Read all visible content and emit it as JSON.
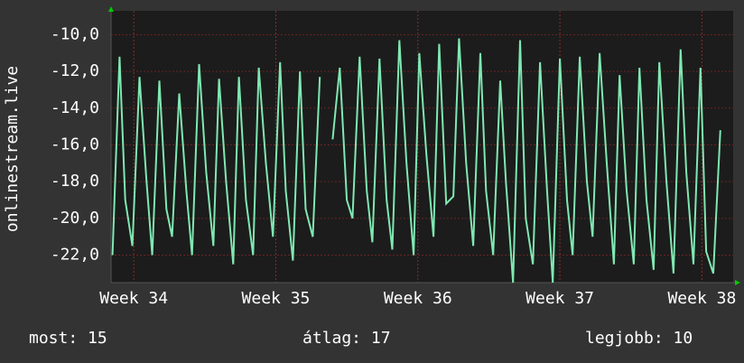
{
  "chart_data": {
    "type": "line",
    "y_label": "onlinestream.live",
    "ylim": [
      -23.5,
      -8.7
    ],
    "yticks": [
      {
        "value": -22,
        "label": "-22,0"
      },
      {
        "value": -20,
        "label": "-20,0"
      },
      {
        "value": -18,
        "label": "-18,0"
      },
      {
        "value": -16,
        "label": "-16,0"
      },
      {
        "value": -14,
        "label": "-14,0"
      },
      {
        "value": -12,
        "label": "-12,0"
      },
      {
        "value": -10,
        "label": "-10,0"
      }
    ],
    "xlim": [
      33.84,
      38.22
    ],
    "xticks": [
      {
        "value": 34,
        "label": "Week 34"
      },
      {
        "value": 35,
        "label": "Week 35"
      },
      {
        "value": 36,
        "label": "Week 36"
      },
      {
        "value": 37,
        "label": "Week 37"
      },
      {
        "value": 38,
        "label": "Week 38"
      }
    ],
    "grid": true,
    "series": [
      {
        "color": "#7fe8b2",
        "x": [
          33.85,
          33.9,
          33.94,
          33.99,
          34.04,
          34.09,
          34.13,
          34.18,
          34.23,
          34.27,
          34.32,
          34.37,
          34.41,
          34.46,
          34.51,
          34.56,
          34.6,
          34.65,
          34.7,
          34.74,
          34.79,
          34.84,
          34.88,
          34.93,
          34.98,
          35.03,
          35.07,
          35.12,
          35.17,
          35.21,
          35.26,
          35.31,
          35.35,
          35.4,
          35.45,
          35.5,
          35.54,
          35.59,
          35.64,
          35.68,
          35.73,
          35.78,
          35.82,
          35.87,
          35.92,
          35.97,
          36.01,
          36.06,
          36.11,
          36.15,
          36.2,
          36.25,
          36.29,
          36.34,
          36.39,
          36.44,
          36.48,
          36.53,
          36.58,
          36.62,
          36.67,
          36.72,
          36.76,
          36.81,
          36.86,
          36.91,
          36.95,
          37.0,
          37.05,
          37.09,
          37.14,
          37.19,
          37.23,
          37.28,
          37.33,
          37.38,
          37.42,
          37.47,
          37.52,
          37.56,
          37.61,
          37.66,
          37.7,
          37.75,
          37.8,
          37.85,
          37.89,
          37.94,
          37.99,
          38.03,
          38.08,
          38.13
        ],
        "values": [
          -22,
          -11.2,
          -19,
          -21.5,
          -12.3,
          -18,
          -22,
          -12.5,
          -19.5,
          -21,
          -13.2,
          -18.5,
          -22,
          -11.6,
          -17.5,
          -21.5,
          -12.4,
          -18,
          -22.5,
          -12.3,
          -19,
          -22,
          -11.8,
          -17,
          -21,
          -11.5,
          -18.5,
          -22.3,
          -12,
          -19.5,
          -21,
          -12.3,
          null,
          -15.7,
          -11.8,
          -19,
          -20,
          -11.2,
          -18.5,
          -21.3,
          -11.3,
          -19,
          -21.7,
          -10.3,
          -17,
          -22,
          -11,
          -16.5,
          -21,
          -10.5,
          -19.2,
          -18.8,
          -10.2,
          -17,
          -21.5,
          -11,
          -18.5,
          -22,
          -12.5,
          -18,
          -23.5,
          -10.3,
          -20,
          -22.5,
          -11.5,
          -18.5,
          -23.5,
          -11.3,
          -19,
          -22,
          -11.2,
          -18,
          -21,
          -11,
          -17,
          -22.5,
          -12.2,
          -18.5,
          -22.5,
          -11.8,
          -19,
          -22.8,
          -11.5,
          -18,
          -23,
          -10.8,
          -17.5,
          -22.5,
          -11.8,
          -21.8,
          -23,
          -15.2
        ]
      }
    ],
    "stats": [
      "most: 15",
      "átlag: 17",
      "legjobb: 10"
    ]
  }
}
